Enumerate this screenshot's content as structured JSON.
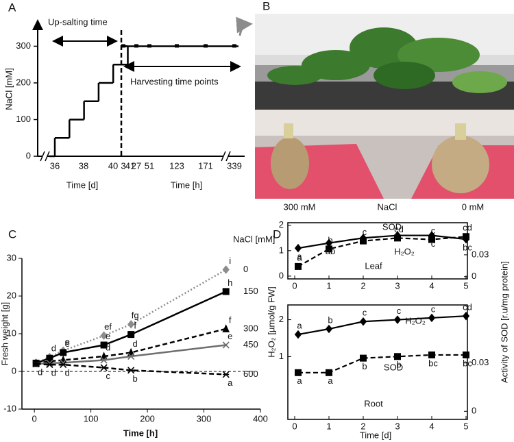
{
  "chart_data": [
    {
      "panel": "A",
      "type": "step",
      "annotations": [
        "Up-salting time",
        "Harvesting time points"
      ],
      "ylabel": "NaCl [mM]",
      "xlabel_days": "Time [d]",
      "xlabel_hours": "Time [h]",
      "xticks_days": [
        36,
        38,
        40,
        41
      ],
      "xticks_hours": [
        3,
        27,
        51,
        123,
        171,
        339
      ],
      "ylim": [
        0,
        370
      ],
      "yticks": [
        0,
        100,
        200,
        300
      ],
      "step_values": [
        50,
        100,
        150,
        200,
        250,
        300
      ],
      "harvest_values": [
        300,
        300,
        300,
        300,
        300,
        300
      ],
      "color": "#000000"
    },
    {
      "panel": "C",
      "type": "line",
      "ylabel": "Fresh weight [g]",
      "xlabel": "Time [h]",
      "legend_title": "NaCl [mM]",
      "x": [
        3,
        27,
        51,
        123,
        171,
        339
      ],
      "xlim": [
        -22,
        400
      ],
      "xticks": [
        0,
        100,
        200,
        300,
        400
      ],
      "ylim": [
        -10,
        30
      ],
      "yticks": [
        -10,
        0,
        10,
        20,
        30
      ],
      "series": [
        {
          "name": "0",
          "color": "#8c8c8c",
          "dash": "dotted",
          "marker": "diamond",
          "values": [
            2.3,
            3.8,
            5.5,
            9.5,
            12.5,
            27
          ],
          "letters": [
            null,
            "d",
            "e",
            "ef",
            "fg",
            "i"
          ]
        },
        {
          "name": "150",
          "color": "#000000",
          "dash": "solid",
          "marker": "square",
          "values": [
            2.2,
            3.5,
            5,
            7,
            9.8,
            21.2
          ],
          "letters": [
            null,
            null,
            "e",
            "e",
            "f",
            "h"
          ]
        },
        {
          "name": "300",
          "color": "#000000",
          "dash": "dashed",
          "marker": "triangle",
          "values": [
            2.1,
            2.7,
            3,
            4,
            5,
            11.3
          ],
          "letters": [
            null,
            null,
            null,
            "d",
            "d",
            "f"
          ]
        },
        {
          "name": "450",
          "color": "#6e6e6e",
          "dash": "solid",
          "marker": "x",
          "values": [
            2,
            2.2,
            2.3,
            3,
            4,
            7
          ],
          "letters": [
            null,
            null,
            null,
            null,
            null,
            "e"
          ]
        },
        {
          "name": "600",
          "color": "#000000",
          "dash": "dashed",
          "marker": "star",
          "values": [
            2,
            1.8,
            1.8,
            1,
            0.3,
            -0.8
          ],
          "letters": [
            "d",
            "d",
            "d",
            "c",
            "b",
            "a"
          ]
        }
      ]
    },
    {
      "panel": "D",
      "type": "dual_line",
      "subtitle": "Leaf",
      "ylabel": "H₂O₂ [µmol/g FW]",
      "y2label": "Activity of SOD [r.u/mg protein]",
      "x": [
        0.1,
        1,
        2,
        3,
        4,
        5
      ],
      "xlim": [
        -0.2,
        5.04
      ],
      "xticks": [
        0,
        1,
        2,
        3,
        4,
        5
      ],
      "ylim": [
        -0.11,
        2.1
      ],
      "yticks": [
        0,
        1,
        2
      ],
      "y2lim": [
        -0.003,
        0.074
      ],
      "y2ticks": [
        0,
        0.03
      ],
      "series": [
        {
          "name": "SOD",
          "axis": "y2",
          "color": "#000000",
          "dash": "dashed",
          "marker": "square",
          "values": [
            0.014,
            0.038,
            0.049,
            0.053,
            0.051,
            0.055
          ],
          "letters": [
            "a",
            "b",
            "c",
            "cd",
            "c",
            "cd"
          ]
        },
        {
          "name": "H₂O₂",
          "color": "#000000",
          "dash": "solid",
          "marker": "diamond",
          "values": [
            1.1,
            1.3,
            1.5,
            1.6,
            1.6,
            1.45
          ],
          "letters": [
            "a",
            "ab",
            null,
            null,
            "c",
            "bc"
          ]
        }
      ]
    },
    {
      "type": "dual_line",
      "subtitle": "Root",
      "xlabel": "Time [d]",
      "x": [
        0.1,
        1,
        2,
        3,
        4,
        5
      ],
      "xlim": [
        -0.2,
        5.04
      ],
      "xticks": [
        0,
        1,
        2,
        3,
        4,
        5
      ],
      "ylim": [
        -0.7,
        2.4
      ],
      "yticks": [
        1,
        2
      ],
      "y2lim": [
        -0.005,
        0.066
      ],
      "y2ticks": [
        0,
        0.03
      ],
      "series": [
        {
          "name": "H₂O₂",
          "color": "#000000",
          "dash": "solid",
          "marker": "diamond",
          "values": [
            1.6,
            1.75,
            1.95,
            2,
            2.05,
            2.1
          ],
          "letters": [
            "a",
            "b",
            "c",
            "c",
            "c",
            "cd"
          ]
        },
        {
          "name": "SOD",
          "axis": "y2",
          "color": "#000000",
          "dash": "dashed",
          "marker": "square",
          "values": [
            0.024,
            0.024,
            0.033,
            0.034,
            0.035,
            0.035
          ],
          "letters": [
            "a",
            "a",
            "b",
            "b",
            "bc",
            "bc"
          ]
        }
      ]
    }
  ],
  "photo": {
    "panel": "B",
    "captions": [
      "300 mM",
      "NaCl",
      "0 mM"
    ]
  }
}
